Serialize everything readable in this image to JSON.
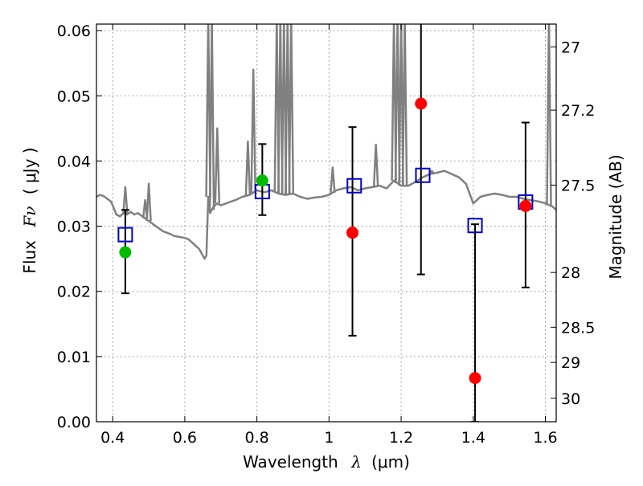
{
  "chart_data": {
    "type": "scatter",
    "title": "",
    "xlabel_text": "Wavelength",
    "xlabel_symbol": "λ",
    "xlabel_unit": "(μm)",
    "ylabel_text": "Flux",
    "ylabel_symbol": "Fν",
    "ylabel_unit": "( μJy )",
    "y2label": "Magnitude (AB)",
    "xlim": [
      0.355,
      1.63
    ],
    "ylim": [
      0.0,
      0.061
    ],
    "grid": true,
    "xticks": [
      0.4,
      0.6,
      0.8,
      1.0,
      1.2,
      1.4,
      1.6
    ],
    "xtick_labels": [
      "0.4",
      "0.6",
      "0.8",
      "1",
      "1.2",
      "1.4",
      "1.6"
    ],
    "yticks": [
      0.0,
      0.01,
      0.02,
      0.03,
      0.04,
      0.05,
      0.06
    ],
    "ytick_labels": [
      "0.00",
      "0.01",
      "0.02",
      "0.03",
      "0.04",
      "0.05",
      "0.06"
    ],
    "y2ticks": [
      {
        "label": "27",
        "flux": 0.0575
      },
      {
        "label": "27.2",
        "flux": 0.0478
      },
      {
        "label": "27.5",
        "flux": 0.0363
      },
      {
        "label": "28",
        "flux": 0.0229
      },
      {
        "label": "28.5",
        "flux": 0.0145
      },
      {
        "label": "29",
        "flux": 0.0091
      },
      {
        "label": "30",
        "flux": 0.0036
      }
    ],
    "colors": {
      "model": "#808080",
      "observed": "#ff0000",
      "observed_alt": "#00bb00",
      "model_photometry": "#0000cc",
      "errorbar": "#000000",
      "grid": "#8a8a8a"
    },
    "model_spectrum": {
      "name": "",
      "x": [
        0.355,
        0.365,
        0.375,
        0.385,
        0.395,
        0.4,
        0.405,
        0.41,
        0.42,
        0.43,
        0.44,
        0.45,
        0.46,
        0.47,
        0.48,
        0.49,
        0.5,
        0.51,
        0.52,
        0.53,
        0.54,
        0.55,
        0.56,
        0.57,
        0.58,
        0.59,
        0.6,
        0.61,
        0.62,
        0.63,
        0.64,
        0.645,
        0.65,
        0.655,
        0.66,
        0.665,
        0.67,
        0.68,
        0.69,
        0.7,
        0.72,
        0.74,
        0.76,
        0.78,
        0.8,
        0.82,
        0.84,
        0.86,
        0.88,
        0.9,
        0.92,
        0.94,
        0.96,
        0.98,
        1.0,
        1.02,
        1.04,
        1.06,
        1.08,
        1.1,
        1.12,
        1.14,
        1.16,
        1.18,
        1.2,
        1.22,
        1.24,
        1.26,
        1.28,
        1.3,
        1.32,
        1.34,
        1.36,
        1.38,
        1.4,
        1.42,
        1.44,
        1.46,
        1.48,
        1.5,
        1.52,
        1.54,
        1.56,
        1.58,
        1.6,
        1.62,
        1.63
      ],
      "y": [
        0.0345,
        0.0348,
        0.0346,
        0.0342,
        0.0338,
        0.0332,
        0.0325,
        0.0318,
        0.0315,
        0.032,
        0.0318,
        0.0322,
        0.0318,
        0.032,
        0.0316,
        0.0312,
        0.0308,
        0.0304,
        0.03,
        0.0296,
        0.0292,
        0.029,
        0.0288,
        0.0285,
        0.0284,
        0.0283,
        0.0282,
        0.028,
        0.0275,
        0.027,
        0.0265,
        0.026,
        0.0255,
        0.025,
        0.0255,
        0.0345,
        0.032,
        0.033,
        0.0335,
        0.0332,
        0.0336,
        0.034,
        0.0345,
        0.0348,
        0.0355,
        0.0352,
        0.0355,
        0.035,
        0.0348,
        0.035,
        0.0345,
        0.0342,
        0.0344,
        0.0345,
        0.0348,
        0.0355,
        0.0358,
        0.036,
        0.0355,
        0.0358,
        0.036,
        0.0362,
        0.0358,
        0.037,
        0.0362,
        0.0362,
        0.0368,
        0.0375,
        0.038,
        0.0382,
        0.0385,
        0.038,
        0.0375,
        0.0365,
        0.0335,
        0.0345,
        0.0348,
        0.035,
        0.0348,
        0.0345,
        0.0345,
        0.0342,
        0.034,
        0.0338,
        0.0335,
        0.033,
        0.0325
      ]
    },
    "emission_lines": [
      {
        "x": 0.435,
        "y": 0.036
      },
      {
        "x": 0.49,
        "y": 0.034
      },
      {
        "x": 0.5,
        "y": 0.0365
      },
      {
        "x": 0.665,
        "y": 0.062
      },
      {
        "x": 0.675,
        "y": 0.062
      },
      {
        "x": 0.69,
        "y": 0.045
      },
      {
        "x": 0.775,
        "y": 0.043
      },
      {
        "x": 0.79,
        "y": 0.054
      },
      {
        "x": 0.855,
        "y": 0.062
      },
      {
        "x": 0.865,
        "y": 0.062
      },
      {
        "x": 0.875,
        "y": 0.062
      },
      {
        "x": 0.885,
        "y": 0.062
      },
      {
        "x": 0.895,
        "y": 0.062
      },
      {
        "x": 1.01,
        "y": 0.039
      },
      {
        "x": 1.13,
        "y": 0.0425
      },
      {
        "x": 1.18,
        "y": 0.062
      },
      {
        "x": 1.19,
        "y": 0.062
      },
      {
        "x": 1.2,
        "y": 0.062
      },
      {
        "x": 1.21,
        "y": 0.062
      },
      {
        "x": 1.285,
        "y": 0.0385
      },
      {
        "x": 1.61,
        "y": 0.062
      }
    ],
    "observed": {
      "name": "",
      "x": [
        0.435,
        0.815,
        1.065,
        1.255,
        1.405,
        1.545
      ],
      "y": [
        0.026,
        0.037,
        0.029,
        0.0488,
        0.0067,
        0.0331
      ],
      "colors": [
        "#00bb00",
        "#00bb00",
        "#ff0000",
        "#ff0000",
        "#ff0000",
        "#ff0000"
      ],
      "err_low": [
        0.0197,
        0.0317,
        0.0132,
        0.0226,
        0.0,
        0.0206
      ],
      "err_high": [
        0.0325,
        0.0426,
        0.0452,
        0.062,
        0.0303,
        0.0459
      ]
    },
    "model_photometry": {
      "name": "",
      "x": [
        0.435,
        0.815,
        1.07,
        1.26,
        1.405,
        1.545
      ],
      "y": [
        0.0287,
        0.0353,
        0.0362,
        0.0378,
        0.0301,
        0.0337
      ]
    }
  }
}
